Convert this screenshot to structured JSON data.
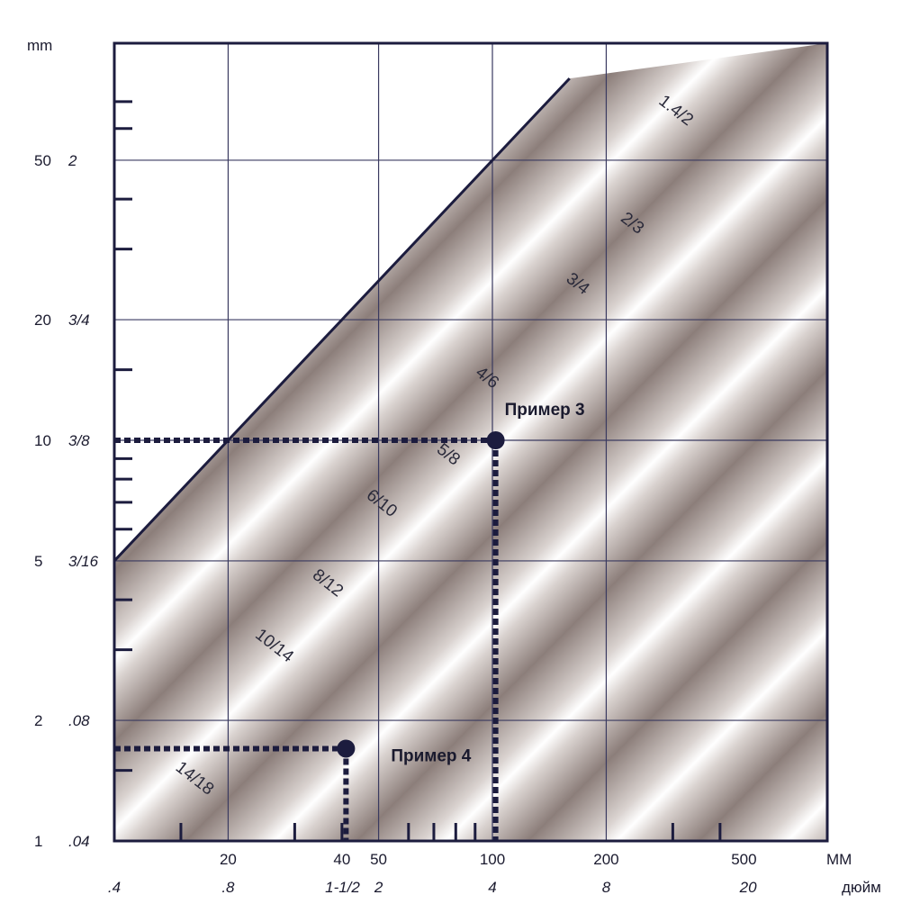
{
  "chart_data": {
    "type": "scatter",
    "scale": "log-log",
    "x_unit_labels": {
      "primary": "MM",
      "secondary": "дюйм"
    },
    "y_unit_label": "mm",
    "xlim": [
      10,
      500
    ],
    "ylim": [
      1,
      80
    ],
    "x_ticks_mm": [
      {
        "value": 20,
        "label": "20"
      },
      {
        "value": 40,
        "label": "40"
      },
      {
        "value": 50,
        "label": "50"
      },
      {
        "value": 100,
        "label": "100"
      },
      {
        "value": 200,
        "label": "200"
      },
      {
        "value": 500,
        "label": "500"
      }
    ],
    "x_ticks_inch": [
      {
        "value": 10,
        "label": ".4"
      },
      {
        "value": 20,
        "label": ".8"
      },
      {
        "value": 40,
        "label": "1-1/2"
      },
      {
        "value": 50,
        "label": "2"
      },
      {
        "value": 100,
        "label": "4"
      },
      {
        "value": 200,
        "label": "8"
      },
      {
        "value": 500,
        "label": "20"
      }
    ],
    "y_ticks_mm": [
      {
        "value": 1,
        "label": "1"
      },
      {
        "value": 2,
        "label": "2"
      },
      {
        "value": 5,
        "label": "5"
      },
      {
        "value": 10,
        "label": "10"
      },
      {
        "value": 20,
        "label": "20"
      },
      {
        "value": 50,
        "label": "50"
      }
    ],
    "y_ticks_inch": [
      {
        "value": 1,
        "label": ".04"
      },
      {
        "value": 2,
        "label": ".08"
      },
      {
        "value": 5,
        "label": "3/16"
      },
      {
        "value": 10,
        "label": "3/8"
      },
      {
        "value": 20,
        "label": "3/4"
      },
      {
        "value": 50,
        "label": "2"
      }
    ],
    "x_gridlines": [
      20,
      50,
      100,
      200
    ],
    "y_gridlines": [
      2,
      5,
      10,
      20,
      50
    ],
    "x_minor_ticks": [
      15,
      30,
      40,
      60,
      70,
      80,
      90,
      300,
      400
    ],
    "y_minor_ticks": [
      1.5,
      3,
      4,
      6,
      7,
      8,
      9,
      15,
      30,
      40,
      60,
      70
    ],
    "boundary_line": {
      "from": [
        10,
        5
      ],
      "to": [
        160,
        80
      ]
    },
    "band_labels": [
      {
        "text": "1.4/2",
        "x": 300,
        "y": 65
      },
      {
        "text": "2/3",
        "x": 230,
        "y": 34
      },
      {
        "text": "3/4",
        "x": 165,
        "y": 24
      },
      {
        "text": "4/6",
        "x": 95,
        "y": 14
      },
      {
        "text": "5/8",
        "x": 75,
        "y": 9
      },
      {
        "text": "6/10",
        "x": 50,
        "y": 6.8
      },
      {
        "text": "8/12",
        "x": 36,
        "y": 4.3
      },
      {
        "text": "10/14",
        "x": 26,
        "y": 3
      },
      {
        "text": "14/18",
        "x": 16,
        "y": 1.4
      }
    ],
    "series": [
      {
        "name": "Пример 3",
        "x": [
          102
        ],
        "y": [
          10
        ]
      },
      {
        "name": "Пример 4",
        "x": [
          41
        ],
        "y": [
          1.7
        ]
      }
    ]
  },
  "colors": {
    "axis": "#1c1c3e",
    "grid": "#3a3a60",
    "point": "#1c1c3e",
    "shade_dark": "#8c7e7a",
    "shade_light": "#ffffff"
  }
}
